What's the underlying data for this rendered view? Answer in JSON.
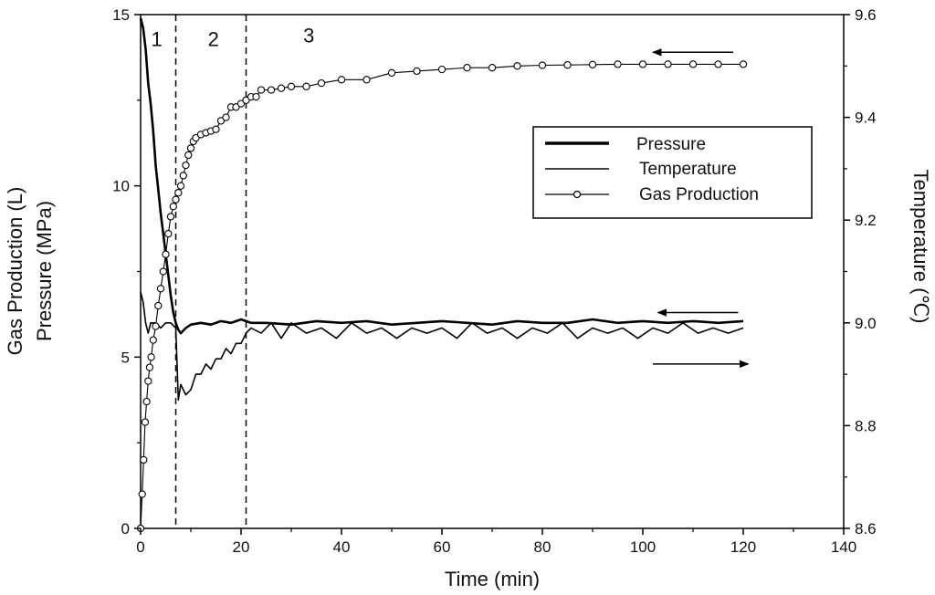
{
  "chart_data": {
    "type": "line",
    "x_label": "Time (min)",
    "y_left_label_line1": "Gas Production (L)",
    "y_left_label_line2": "Pressure (MPa)",
    "y_right_label": "Temperature (℃)",
    "x_range": [
      0,
      140
    ],
    "y_left_range": [
      0,
      15
    ],
    "y_right_range": [
      8.6,
      9.6
    ],
    "x_ticks": [
      "0",
      "20",
      "40",
      "60",
      "80",
      "100",
      "120",
      "140"
    ],
    "y_left_ticks": [
      "0",
      "5",
      "10",
      "15"
    ],
    "y_right_ticks": [
      "8.6",
      "8.8",
      "9.0",
      "9.2",
      "9.4",
      "9.6"
    ],
    "stage_boundaries": [
      7,
      21
    ],
    "stage_labels": [
      {
        "text": "1",
        "x": 3.2,
        "y": 14.3
      },
      {
        "text": "2",
        "x": 14.5,
        "y": 14.3
      },
      {
        "text": "3",
        "x": 33.5,
        "y": 14.4
      }
    ],
    "legend": [
      "Pressure",
      "Temperature",
      "Gas Production"
    ],
    "series": [
      {
        "name": "Pressure",
        "axis": "left",
        "x": [
          0,
          0.5,
          1,
          1.5,
          2,
          2.5,
          3,
          3.5,
          4,
          4.5,
          5,
          5.5,
          6,
          6.5,
          7,
          7.5,
          8,
          9,
          10,
          12,
          14,
          16,
          18,
          20,
          22,
          25,
          30,
          35,
          40,
          45,
          50,
          55,
          60,
          65,
          70,
          75,
          80,
          85,
          90,
          95,
          100,
          105,
          110,
          115,
          120
        ],
        "y": [
          14.9,
          14.6,
          14.0,
          13.0,
          12.4,
          11.6,
          10.6,
          9.9,
          9.2,
          8.6,
          8.0,
          7.4,
          6.8,
          6.3,
          6.0,
          5.8,
          5.7,
          5.85,
          5.95,
          6.0,
          5.95,
          6.05,
          6.0,
          6.1,
          6.0,
          6.0,
          5.95,
          6.05,
          6.0,
          6.05,
          5.95,
          6.0,
          6.05,
          6.0,
          5.95,
          6.05,
          6.0,
          6.0,
          6.1,
          6.0,
          6.05,
          6.0,
          6.05,
          6.0,
          6.05
        ]
      },
      {
        "name": "Temperature",
        "axis": "right",
        "x": [
          0,
          0.5,
          1,
          1.5,
          2,
          3,
          4,
          5,
          6,
          7,
          7.5,
          8,
          9,
          10,
          11,
          12,
          13,
          14,
          15,
          16,
          17,
          18,
          19,
          20,
          21,
          22,
          24,
          26,
          28,
          30,
          33,
          36,
          39,
          42,
          45,
          48,
          51,
          54,
          57,
          60,
          63,
          66,
          69,
          72,
          75,
          78,
          81,
          84,
          87,
          90,
          93,
          96,
          99,
          102,
          105,
          108,
          111,
          114,
          117,
          120
        ],
        "y": [
          9.06,
          9.04,
          9.0,
          8.98,
          9.0,
          9.0,
          8.99,
          9.0,
          9.0,
          8.99,
          8.85,
          8.88,
          8.86,
          8.87,
          8.9,
          8.9,
          8.92,
          8.91,
          8.93,
          8.93,
          8.95,
          8.94,
          8.96,
          8.96,
          8.98,
          8.99,
          8.98,
          9.0,
          8.97,
          9.0,
          8.98,
          8.99,
          8.97,
          9.0,
          8.98,
          8.99,
          8.97,
          8.99,
          8.98,
          8.99,
          8.97,
          9.0,
          8.98,
          8.99,
          8.97,
          8.99,
          8.98,
          9.0,
          8.97,
          8.99,
          8.98,
          8.99,
          8.97,
          8.99,
          8.98,
          9.0,
          8.98,
          8.99,
          8.98,
          8.99
        ]
      },
      {
        "name": "Gas Production",
        "axis": "left",
        "x": [
          0,
          0.3,
          0.6,
          0.9,
          1.2,
          1.5,
          1.8,
          2.1,
          2.5,
          3,
          3.5,
          4,
          4.5,
          5,
          5.5,
          6,
          6.5,
          7,
          7.5,
          8,
          8.5,
          9,
          9.5,
          10,
          10.5,
          11,
          12,
          13,
          14,
          15,
          16,
          17,
          18,
          19,
          20,
          21,
          22,
          23,
          24,
          26,
          28,
          30,
          33,
          36,
          40,
          45,
          50,
          55,
          60,
          65,
          70,
          75,
          80,
          85,
          90,
          95,
          100,
          105,
          110,
          115,
          120
        ],
        "y": [
          0,
          1.0,
          2.0,
          3.1,
          3.7,
          4.3,
          4.7,
          5.0,
          5.5,
          5.9,
          6.5,
          7.0,
          7.5,
          8.0,
          8.6,
          9.1,
          9.4,
          9.6,
          9.8,
          10.0,
          10.3,
          10.6,
          10.9,
          11.1,
          11.3,
          11.4,
          11.5,
          11.55,
          11.6,
          11.65,
          11.9,
          12.0,
          12.3,
          12.3,
          12.4,
          12.5,
          12.6,
          12.6,
          12.8,
          12.8,
          12.85,
          12.9,
          12.9,
          13.0,
          13.1,
          13.1,
          13.3,
          13.35,
          13.4,
          13.45,
          13.45,
          13.5,
          13.52,
          13.53,
          13.54,
          13.55,
          13.55,
          13.55,
          13.55,
          13.55,
          13.55
        ]
      }
    ],
    "arrows": [
      {
        "series": "Pressure",
        "direction": "left",
        "x_from": 118,
        "x_to": 102,
        "y": 13.9,
        "axis": "left"
      },
      {
        "series": "Temperature",
        "direction": "left",
        "x_from": 119,
        "x_to": 103,
        "y": 6.3,
        "axis": "left"
      },
      {
        "series": "Gas Production",
        "direction": "right",
        "x_from": 102,
        "x_to": 121,
        "y": 4.8,
        "axis": "left"
      }
    ]
  }
}
